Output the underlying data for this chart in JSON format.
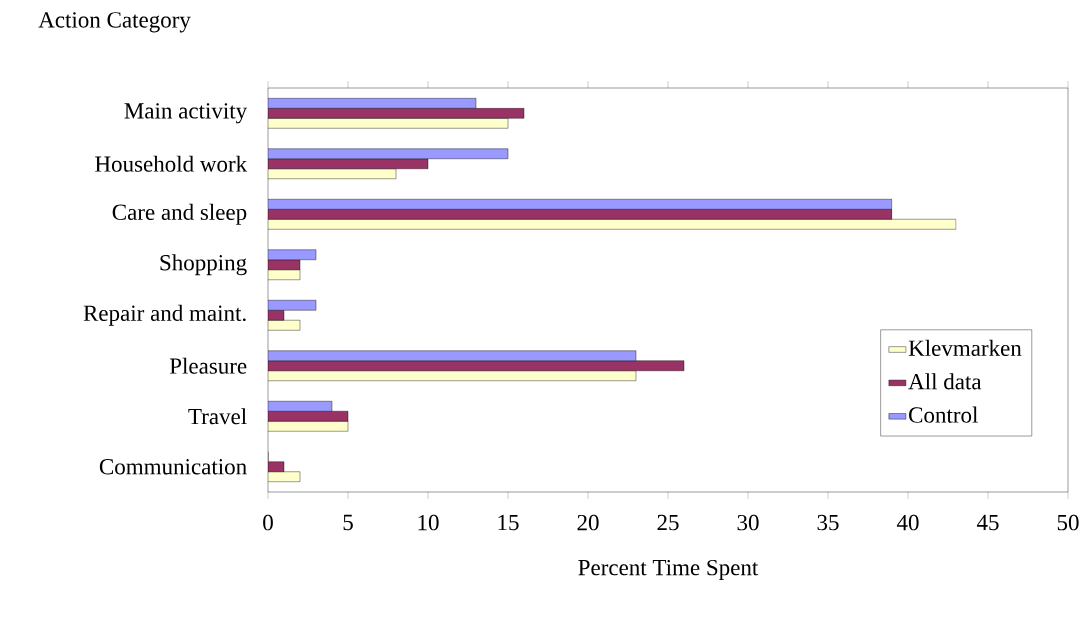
{
  "chart_data": {
    "type": "bar",
    "orientation": "horizontal",
    "ylabel": "Action Category",
    "xlabel": "Percent Time Spent",
    "categories": [
      "Main activity",
      "Household work",
      "Care and sleep",
      "Shopping",
      "Repair and maint.",
      "Pleasure",
      "Travel",
      "Communication"
    ],
    "series": [
      {
        "name": "Klevmarken",
        "color": "#ffffcc",
        "values": [
          15,
          8,
          43,
          2,
          2,
          23,
          5,
          2
        ]
      },
      {
        "name": "All data",
        "color": "#993366",
        "values": [
          16,
          10,
          39,
          2,
          1,
          26,
          5,
          1
        ]
      },
      {
        "name": "Control",
        "color": "#9999ff",
        "values": [
          13,
          15,
          39,
          3,
          3,
          23,
          4,
          0
        ]
      }
    ],
    "xlim": [
      0,
      50
    ],
    "xticks": [
      0,
      5,
      10,
      15,
      20,
      25,
      30,
      35,
      40,
      45,
      50
    ],
    "grid": false,
    "legend": "right"
  }
}
